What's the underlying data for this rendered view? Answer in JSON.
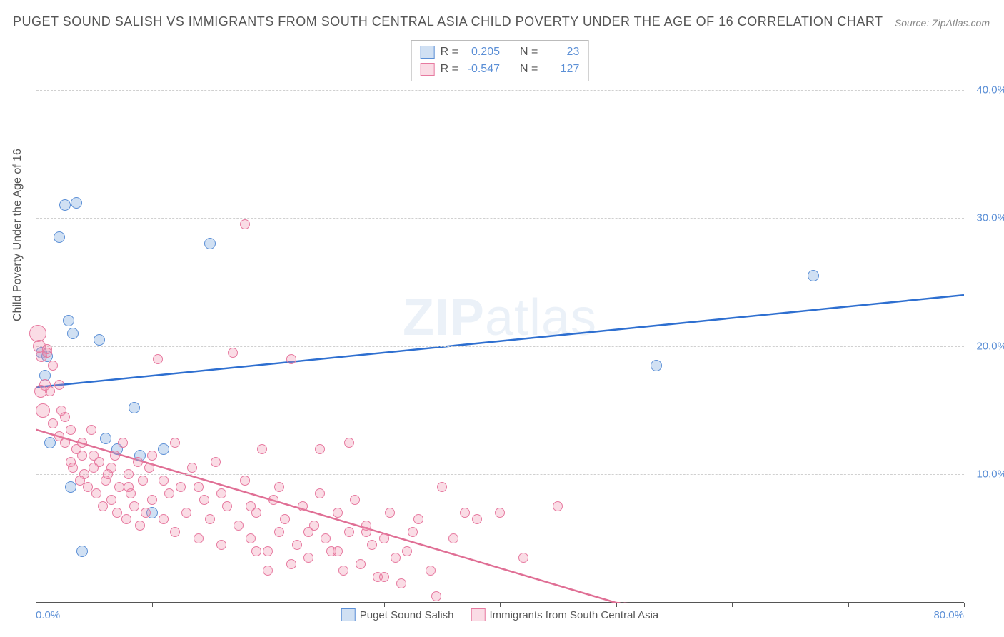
{
  "title": "PUGET SOUND SALISH VS IMMIGRANTS FROM SOUTH CENTRAL ASIA CHILD POVERTY UNDER THE AGE OF 16 CORRELATION CHART",
  "source": "Source: ZipAtlas.com",
  "ylabel": "Child Poverty Under the Age of 16",
  "watermark_a": "ZIP",
  "watermark_b": "atlas",
  "colors": {
    "blue_fill": "rgba(120,165,220,0.35)",
    "blue_stroke": "#5b8fd6",
    "pink_fill": "rgba(240,140,170,0.30)",
    "pink_stroke": "#e77aa0",
    "blue_line": "#2e6fd0",
    "pink_line": "#e06f95",
    "tick_text": "#5b8fd6",
    "grid": "#d0d0d0"
  },
  "chart": {
    "type": "scatter",
    "xlim": [
      0,
      80
    ],
    "ylim": [
      0,
      44
    ],
    "xticks": [
      0,
      10,
      20,
      30,
      40,
      50,
      60,
      70,
      80
    ],
    "xtick_labels": {
      "0": "0.0%",
      "80": "80.0%"
    },
    "yticks": [
      10,
      20,
      30,
      40
    ],
    "ytick_labels": {
      "10": "10.0%",
      "20": "20.0%",
      "30": "30.0%",
      "40": "40.0%"
    },
    "marker_radius": 8,
    "background_color": "#ffffff",
    "grid_color": "#d0d0d0"
  },
  "series": [
    {
      "name": "Puget Sound Salish",
      "color_key": "blue",
      "R": "0.205",
      "N": "23",
      "trend": {
        "x1": 0,
        "y1": 16.8,
        "x2": 80,
        "y2": 24.0,
        "dashed_from": null
      },
      "points": [
        [
          0.5,
          19.5
        ],
        [
          0.8,
          17.7
        ],
        [
          1.0,
          19.2
        ],
        [
          1.2,
          12.5
        ],
        [
          2.0,
          28.5
        ],
        [
          2.5,
          31.0
        ],
        [
          3.5,
          31.2
        ],
        [
          2.8,
          22.0
        ],
        [
          3.2,
          21.0
        ],
        [
          3.0,
          9.0
        ],
        [
          4.0,
          4.0
        ],
        [
          5.5,
          20.5
        ],
        [
          6.0,
          12.8
        ],
        [
          7.0,
          12.0
        ],
        [
          8.5,
          15.2
        ],
        [
          9.0,
          11.5
        ],
        [
          10.0,
          7.0
        ],
        [
          11.0,
          12.0
        ],
        [
          15.0,
          28.0
        ],
        [
          53.5,
          18.5
        ],
        [
          67.0,
          25.5
        ]
      ]
    },
    {
      "name": "Immigrants from South Central Asia",
      "color_key": "pink",
      "R": "-0.547",
      "N": "127",
      "trend": {
        "x1": 0,
        "y1": 13.5,
        "x2": 50,
        "y2": 0.0,
        "dashed_to_x": 80
      },
      "points": [
        [
          0.2,
          21.0,
          12
        ],
        [
          0.3,
          20.0,
          9
        ],
        [
          0.5,
          19.2,
          8
        ],
        [
          0.6,
          15.0,
          10
        ],
        [
          0.8,
          17.0,
          8
        ],
        [
          1.0,
          19.5,
          7
        ],
        [
          1.2,
          16.5,
          7
        ],
        [
          1.5,
          14.0,
          7
        ],
        [
          2.0,
          13.0,
          7
        ],
        [
          2.2,
          15.0,
          7
        ],
        [
          2.5,
          12.5,
          7
        ],
        [
          3.0,
          11.0,
          7
        ],
        [
          3.2,
          10.5,
          7
        ],
        [
          3.5,
          12.0,
          7
        ],
        [
          3.8,
          9.5,
          7
        ],
        [
          4.0,
          11.5,
          7
        ],
        [
          4.2,
          10.0,
          7
        ],
        [
          4.5,
          9.0,
          7
        ],
        [
          4.8,
          13.5,
          7
        ],
        [
          5.0,
          10.5,
          7
        ],
        [
          5.2,
          8.5,
          7
        ],
        [
          5.5,
          11.0,
          7
        ],
        [
          5.8,
          7.5,
          7
        ],
        [
          6.0,
          9.5,
          7
        ],
        [
          6.2,
          10.0,
          7
        ],
        [
          6.5,
          8.0,
          7
        ],
        [
          6.8,
          11.5,
          7
        ],
        [
          7.0,
          7.0,
          7
        ],
        [
          7.2,
          9.0,
          7
        ],
        [
          7.5,
          12.5,
          7
        ],
        [
          7.8,
          6.5,
          7
        ],
        [
          8.0,
          10.0,
          7
        ],
        [
          8.2,
          8.5,
          7
        ],
        [
          8.5,
          7.5,
          7
        ],
        [
          8.8,
          11.0,
          7
        ],
        [
          9.0,
          6.0,
          7
        ],
        [
          9.2,
          9.5,
          7
        ],
        [
          9.5,
          7.0,
          7
        ],
        [
          9.8,
          10.5,
          7
        ],
        [
          10.0,
          8.0,
          7
        ],
        [
          10.5,
          19.0,
          7
        ],
        [
          11.0,
          6.5,
          7
        ],
        [
          11.5,
          8.5,
          7
        ],
        [
          12.0,
          5.5,
          7
        ],
        [
          12.5,
          9.0,
          7
        ],
        [
          13.0,
          7.0,
          7
        ],
        [
          13.5,
          10.5,
          7
        ],
        [
          14.0,
          5.0,
          7
        ],
        [
          14.5,
          8.0,
          7
        ],
        [
          15.0,
          6.5,
          7
        ],
        [
          15.5,
          11.0,
          7
        ],
        [
          16.0,
          4.5,
          7
        ],
        [
          16.5,
          7.5,
          7
        ],
        [
          17.0,
          19.5,
          7
        ],
        [
          17.5,
          6.0,
          7
        ],
        [
          18.0,
          9.5,
          7
        ],
        [
          18.5,
          5.0,
          7
        ],
        [
          19.0,
          7.0,
          7
        ],
        [
          19.5,
          12.0,
          7
        ],
        [
          20.0,
          4.0,
          7
        ],
        [
          20.5,
          8.0,
          7
        ],
        [
          21.0,
          5.5,
          7
        ],
        [
          21.5,
          6.5,
          7
        ],
        [
          22.0,
          19.0,
          7
        ],
        [
          22.5,
          4.5,
          7
        ],
        [
          23.0,
          7.5,
          7
        ],
        [
          23.5,
          3.5,
          7
        ],
        [
          24.0,
          6.0,
          7
        ],
        [
          24.5,
          8.5,
          7
        ],
        [
          25.0,
          5.0,
          7
        ],
        [
          25.5,
          4.0,
          7
        ],
        [
          26.0,
          7.0,
          7
        ],
        [
          26.5,
          2.5,
          7
        ],
        [
          27.0,
          5.5,
          7
        ],
        [
          27.5,
          8.0,
          7
        ],
        [
          28.0,
          3.0,
          7
        ],
        [
          28.5,
          6.0,
          7
        ],
        [
          29.0,
          4.5,
          7
        ],
        [
          29.5,
          2.0,
          7
        ],
        [
          30.0,
          5.0,
          7
        ],
        [
          30.5,
          7.0,
          7
        ],
        [
          31.0,
          3.5,
          7
        ],
        [
          31.5,
          1.5,
          7
        ],
        [
          32.0,
          4.0,
          7
        ],
        [
          33.0,
          6.5,
          7
        ],
        [
          34.0,
          2.5,
          7
        ],
        [
          35.0,
          9.0,
          7
        ],
        [
          36.0,
          5.0,
          7
        ],
        [
          37.0,
          7.0,
          7
        ],
        [
          38.0,
          6.5,
          7
        ],
        [
          40.0,
          7.0,
          7
        ],
        [
          42.0,
          3.5,
          7
        ],
        [
          45.0,
          7.5,
          7
        ],
        [
          18.0,
          29.5,
          7
        ],
        [
          1.0,
          19.8,
          7
        ],
        [
          1.5,
          18.5,
          7
        ],
        [
          2.0,
          17.0,
          7
        ],
        [
          2.5,
          14.5,
          7
        ],
        [
          0.4,
          16.5,
          9
        ],
        [
          3.0,
          13.5,
          7
        ],
        [
          4.0,
          12.5,
          7
        ],
        [
          5.0,
          11.5,
          7
        ],
        [
          6.5,
          10.5,
          7
        ],
        [
          8.0,
          9.0,
          7
        ],
        [
          10.0,
          11.5,
          7
        ],
        [
          11.0,
          9.5,
          7
        ],
        [
          12.0,
          12.5,
          7
        ],
        [
          14.0,
          9.0,
          7
        ],
        [
          16.0,
          8.5,
          7
        ],
        [
          18.5,
          7.5,
          7
        ],
        [
          21.0,
          9.0,
          7
        ],
        [
          23.5,
          5.5,
          7
        ],
        [
          26.0,
          4.0,
          7
        ],
        [
          28.5,
          5.5,
          7
        ],
        [
          19.0,
          4.0,
          7
        ],
        [
          20.0,
          2.5,
          7
        ],
        [
          22.0,
          3.0,
          7
        ],
        [
          24.5,
          12.0,
          7
        ],
        [
          27.0,
          12.5,
          7
        ],
        [
          30.0,
          2.0,
          7
        ],
        [
          32.5,
          5.5,
          7
        ],
        [
          34.5,
          0.5,
          7
        ]
      ]
    }
  ],
  "legend": {
    "items": [
      "Puget Sound Salish",
      "Immigrants from South Central Asia"
    ]
  },
  "stats_labels": {
    "R": "R =",
    "N": "N ="
  }
}
